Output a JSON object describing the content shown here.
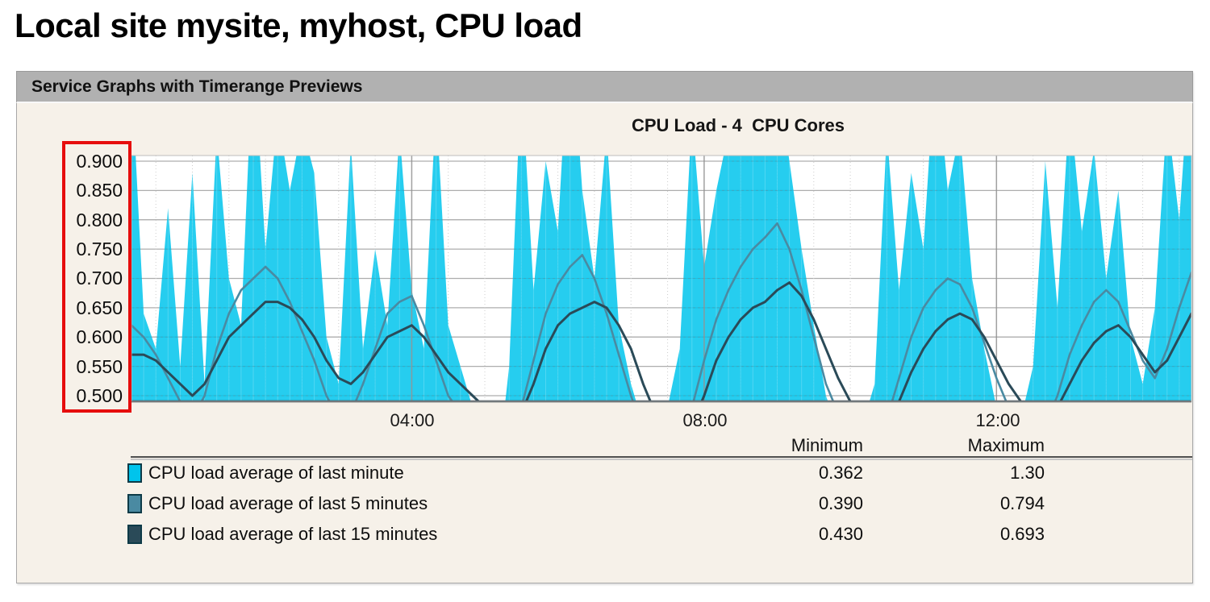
{
  "page_title": "Local site mysite, myhost, CPU load",
  "panel": {
    "header": "Service Graphs with Timerange Previews"
  },
  "chart": {
    "title": "CPU Load - 4  CPU Cores",
    "y_ticks": [
      "0.900",
      "0.850",
      "0.800",
      "0.750",
      "0.700",
      "0.650",
      "0.600",
      "0.550",
      "0.500"
    ],
    "x_ticks": [
      "04:00",
      "08:00",
      "12:00"
    ],
    "colors": {
      "area_load1": "#00c4ec",
      "line_load5": "#4a8aa2",
      "line_load15": "#2a4a58",
      "grid": "#adadad",
      "major_grid": "#909090",
      "panel_bg": "#f6f1e9",
      "header_bg": "#b1b1b1",
      "plot_bg": "#ffffff",
      "baseline": "#26343c",
      "annotation_red": "#e60d0d"
    }
  },
  "annotation": {
    "type": "highlight-box",
    "color": "#e60d0d",
    "target": "y-axis-tick-labels"
  },
  "legend": {
    "columns": [
      "Minimum",
      "Maximum"
    ],
    "rows": [
      {
        "label": "CPU load average of last minute",
        "min": "0.362",
        "max": "1.30",
        "color": "#00c4ec"
      },
      {
        "label": "CPU load average of last 5 minutes",
        "min": "0.390",
        "max": "0.794",
        "color": "#4a8aa2"
      },
      {
        "label": "CPU load average of last 15 minutes",
        "min": "0.430",
        "max": "0.693",
        "color": "#2a4a58"
      }
    ]
  },
  "chart_data": {
    "type": "area",
    "title": "CPU Load - 4  CPU Cores",
    "xlabel": "",
    "ylabel": "",
    "x_start": "00:10",
    "x_end": "14:40",
    "x_step_minutes": 10,
    "x_axis_ticks": [
      "04:00",
      "08:00",
      "12:00"
    ],
    "ylim_visible": [
      0.5,
      0.9
    ],
    "y_gridline_step": 0.05,
    "grid": true,
    "legend_position": "bottom-table-with-min-max",
    "note": "series values above 0.9 and below 0.5 are clipped by the visible plot window; values are visual estimates",
    "series": [
      {
        "name": "CPU load average of last minute",
        "type": "area",
        "color": "#00c4ec",
        "min": 0.362,
        "max": 1.3,
        "values": [
          1.05,
          0.64,
          0.58,
          0.82,
          0.55,
          0.88,
          0.52,
          0.95,
          0.7,
          0.62,
          1.1,
          0.75,
          0.98,
          0.85,
          0.96,
          0.88,
          0.6,
          0.52,
          0.93,
          0.58,
          0.75,
          0.62,
          0.95,
          0.68,
          0.58,
          1.0,
          0.62,
          0.55,
          0.48,
          0.44,
          0.362,
          0.55,
          1.05,
          0.68,
          0.9,
          0.78,
          1.15,
          0.85,
          0.7,
          0.95,
          0.62,
          0.52,
          0.45,
          0.4,
          0.48,
          0.58,
          0.98,
          0.72,
          0.85,
          0.95,
          1.3,
          0.92,
          0.98,
          1.05,
          0.9,
          0.75,
          0.62,
          0.5,
          0.44,
          0.4,
          0.45,
          0.52,
          0.95,
          0.68,
          0.88,
          0.75,
          1.08,
          0.85,
          0.95,
          0.7,
          0.58,
          0.48,
          0.42,
          0.46,
          0.55,
          0.9,
          0.65,
          1.0,
          0.78,
          0.92,
          0.7,
          0.85,
          0.6,
          0.52,
          0.65,
          0.98,
          0.8,
          1.1
        ]
      },
      {
        "name": "CPU load average of last 5 minutes",
        "type": "line",
        "color": "#4a8aa2",
        "min": 0.39,
        "max": 0.794,
        "values": [
          0.62,
          0.6,
          0.57,
          0.53,
          0.49,
          0.46,
          0.5,
          0.58,
          0.64,
          0.68,
          0.7,
          0.72,
          0.7,
          0.66,
          0.61,
          0.56,
          0.5,
          0.46,
          0.47,
          0.52,
          0.58,
          0.64,
          0.66,
          0.67,
          0.62,
          0.56,
          0.5,
          0.47,
          0.44,
          0.41,
          0.39,
          0.42,
          0.48,
          0.56,
          0.64,
          0.69,
          0.72,
          0.74,
          0.7,
          0.64,
          0.57,
          0.5,
          0.44,
          0.41,
          0.4,
          0.42,
          0.48,
          0.56,
          0.63,
          0.68,
          0.72,
          0.75,
          0.77,
          0.794,
          0.75,
          0.68,
          0.6,
          0.52,
          0.47,
          0.43,
          0.41,
          0.42,
          0.46,
          0.53,
          0.6,
          0.65,
          0.68,
          0.7,
          0.69,
          0.65,
          0.59,
          0.53,
          0.48,
          0.44,
          0.43,
          0.45,
          0.5,
          0.57,
          0.62,
          0.66,
          0.68,
          0.66,
          0.61,
          0.56,
          0.53,
          0.58,
          0.65,
          0.71
        ]
      },
      {
        "name": "CPU load average of last 15 minutes",
        "type": "line",
        "color": "#2a4a58",
        "min": 0.43,
        "max": 0.693,
        "values": [
          0.57,
          0.57,
          0.56,
          0.54,
          0.52,
          0.5,
          0.52,
          0.56,
          0.6,
          0.62,
          0.64,
          0.66,
          0.66,
          0.65,
          0.63,
          0.6,
          0.56,
          0.53,
          0.52,
          0.54,
          0.57,
          0.6,
          0.61,
          0.62,
          0.6,
          0.57,
          0.54,
          0.52,
          0.5,
          0.48,
          0.46,
          0.45,
          0.47,
          0.52,
          0.58,
          0.62,
          0.64,
          0.65,
          0.66,
          0.65,
          0.62,
          0.58,
          0.52,
          0.47,
          0.44,
          0.43,
          0.45,
          0.5,
          0.56,
          0.6,
          0.63,
          0.65,
          0.66,
          0.68,
          0.693,
          0.67,
          0.63,
          0.58,
          0.53,
          0.49,
          0.46,
          0.44,
          0.45,
          0.49,
          0.54,
          0.58,
          0.61,
          0.63,
          0.64,
          0.63,
          0.6,
          0.56,
          0.52,
          0.49,
          0.47,
          0.46,
          0.48,
          0.52,
          0.56,
          0.59,
          0.61,
          0.62,
          0.6,
          0.57,
          0.54,
          0.56,
          0.6,
          0.64
        ]
      }
    ]
  }
}
